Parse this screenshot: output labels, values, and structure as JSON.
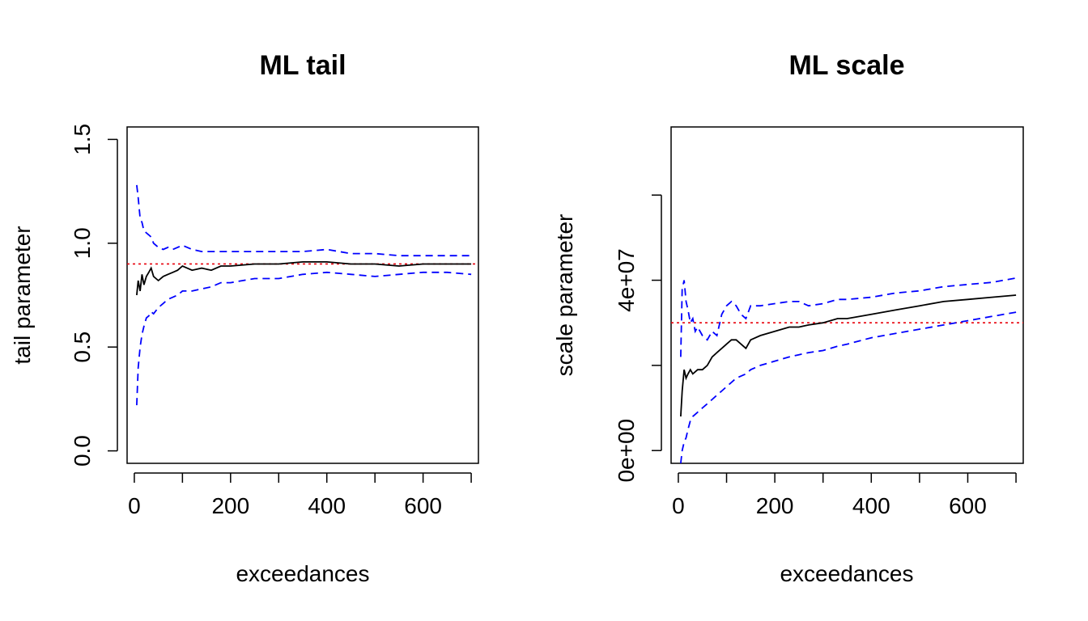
{
  "chart_data": [
    {
      "type": "line",
      "title": "ML tail",
      "xlabel": "exceedances",
      "ylabel": "tail parameter",
      "xlim": [
        -15,
        715
      ],
      "ylim": [
        -0.06,
        1.56
      ],
      "x_ticks": [
        0,
        100,
        200,
        300,
        400,
        500,
        600,
        700
      ],
      "x_tick_labels": [
        "0",
        "",
        "200",
        "",
        "400",
        "",
        "600",
        ""
      ],
      "y_ticks": [
        0.0,
        0.5,
        1.0,
        1.5
      ],
      "y_tick_labels": [
        "0.0",
        "0.5",
        "1.0",
        "1.5"
      ],
      "reference_line": {
        "y": 0.9,
        "color": "#e8000b",
        "style": "dotted"
      },
      "series": [
        {
          "role": "estimate",
          "color": "#000000",
          "style": "solid",
          "x": [
            5,
            8,
            12,
            16,
            20,
            25,
            30,
            35,
            40,
            50,
            60,
            70,
            80,
            90,
            100,
            120,
            140,
            160,
            180,
            200,
            250,
            300,
            350,
            400,
            450,
            500,
            550,
            600,
            650,
            700
          ],
          "y": [
            0.75,
            0.82,
            0.77,
            0.85,
            0.8,
            0.84,
            0.86,
            0.88,
            0.84,
            0.82,
            0.84,
            0.85,
            0.86,
            0.87,
            0.89,
            0.87,
            0.88,
            0.87,
            0.89,
            0.89,
            0.9,
            0.9,
            0.91,
            0.91,
            0.9,
            0.9,
            0.89,
            0.9,
            0.9,
            0.9
          ]
        },
        {
          "role": "upper",
          "color": "#0000ff",
          "style": "dashed",
          "x": [
            5,
            8,
            12,
            16,
            20,
            25,
            30,
            35,
            40,
            50,
            60,
            70,
            80,
            90,
            100,
            120,
            140,
            160,
            180,
            200,
            250,
            300,
            350,
            400,
            450,
            500,
            550,
            600,
            650,
            700
          ],
          "y": [
            1.28,
            1.22,
            1.12,
            1.1,
            1.06,
            1.05,
            1.04,
            1.03,
            1.0,
            0.98,
            0.97,
            0.98,
            0.97,
            0.98,
            0.99,
            0.97,
            0.96,
            0.96,
            0.96,
            0.96,
            0.96,
            0.96,
            0.96,
            0.97,
            0.95,
            0.95,
            0.94,
            0.94,
            0.94,
            0.94
          ]
        },
        {
          "role": "lower",
          "color": "#0000ff",
          "style": "dashed",
          "x": [
            5,
            8,
            12,
            16,
            20,
            25,
            30,
            35,
            40,
            50,
            60,
            70,
            80,
            90,
            100,
            120,
            140,
            160,
            180,
            200,
            250,
            300,
            350,
            400,
            450,
            500,
            550,
            600,
            650,
            700
          ],
          "y": [
            0.22,
            0.4,
            0.5,
            0.56,
            0.6,
            0.64,
            0.65,
            0.67,
            0.66,
            0.69,
            0.71,
            0.73,
            0.74,
            0.75,
            0.77,
            0.77,
            0.78,
            0.79,
            0.81,
            0.81,
            0.83,
            0.83,
            0.85,
            0.86,
            0.85,
            0.84,
            0.85,
            0.86,
            0.86,
            0.85
          ]
        }
      ]
    },
    {
      "type": "line",
      "title": "ML scale",
      "xlabel": "exceedances",
      "ylabel": "scale parameter",
      "xlim": [
        -15,
        715
      ],
      "ylim": [
        -3000000,
        76000000
      ],
      "x_ticks": [
        0,
        100,
        200,
        300,
        400,
        500,
        600,
        700
      ],
      "x_tick_labels": [
        "0",
        "",
        "200",
        "",
        "400",
        "",
        "600",
        ""
      ],
      "y_ticks": [
        0,
        20000000,
        40000000,
        60000000
      ],
      "y_tick_labels": [
        "0e+00",
        "",
        "4e+07",
        ""
      ],
      "reference_line": {
        "y": 30000000,
        "color": "#e8000b",
        "style": "dotted"
      },
      "series": [
        {
          "role": "estimate",
          "color": "#000000",
          "style": "solid",
          "x": [
            5,
            8,
            12,
            16,
            20,
            25,
            30,
            35,
            40,
            50,
            60,
            70,
            80,
            90,
            100,
            110,
            120,
            130,
            140,
            150,
            170,
            200,
            230,
            250,
            270,
            300,
            330,
            350,
            400,
            450,
            500,
            550,
            600,
            650,
            700
          ],
          "y": [
            8000000,
            14000000,
            19000000,
            17000000,
            18000000,
            19000000,
            18000000,
            18500000,
            19000000,
            19000000,
            20000000,
            22000000,
            23000000,
            24000000,
            25000000,
            26000000,
            26000000,
            25000000,
            24000000,
            26000000,
            27000000,
            28000000,
            29000000,
            29000000,
            29500000,
            30000000,
            31000000,
            31000000,
            32000000,
            33000000,
            34000000,
            35000000,
            35500000,
            36000000,
            36500000
          ]
        },
        {
          "role": "upper",
          "color": "#0000ff",
          "style": "dashed",
          "x": [
            5,
            8,
            12,
            16,
            20,
            25,
            30,
            35,
            40,
            50,
            60,
            70,
            80,
            90,
            100,
            110,
            120,
            130,
            140,
            150,
            170,
            200,
            230,
            250,
            270,
            300,
            330,
            350,
            400,
            450,
            500,
            550,
            600,
            650,
            700
          ],
          "y": [
            22000000,
            38000000,
            40000000,
            35000000,
            33000000,
            30000000,
            31000000,
            28000000,
            29000000,
            27000000,
            26000000,
            28000000,
            27000000,
            32000000,
            34000000,
            35000000,
            34000000,
            32000000,
            31000000,
            34000000,
            34000000,
            34500000,
            35000000,
            35000000,
            34000000,
            34500000,
            35500000,
            35500000,
            36000000,
            37000000,
            37500000,
            38500000,
            39000000,
            39500000,
            40500000
          ]
        },
        {
          "role": "lower",
          "color": "#0000ff",
          "style": "dashed",
          "x": [
            5,
            8,
            12,
            16,
            20,
            25,
            30,
            35,
            40,
            50,
            60,
            70,
            80,
            90,
            100,
            110,
            120,
            130,
            140,
            150,
            170,
            200,
            230,
            250,
            270,
            300,
            330,
            350,
            400,
            450,
            500,
            550,
            600,
            650,
            700
          ],
          "y": [
            -3000000,
            0,
            2000000,
            3000000,
            5000000,
            7000000,
            8000000,
            8500000,
            9000000,
            10000000,
            11000000,
            12000000,
            13000000,
            14000000,
            15000000,
            16000000,
            17000000,
            17500000,
            18000000,
            19000000,
            20000000,
            21000000,
            22000000,
            22500000,
            23000000,
            23500000,
            24500000,
            25000000,
            26500000,
            27500000,
            28500000,
            29500000,
            30500000,
            31500000,
            32500000
          ]
        }
      ]
    }
  ]
}
